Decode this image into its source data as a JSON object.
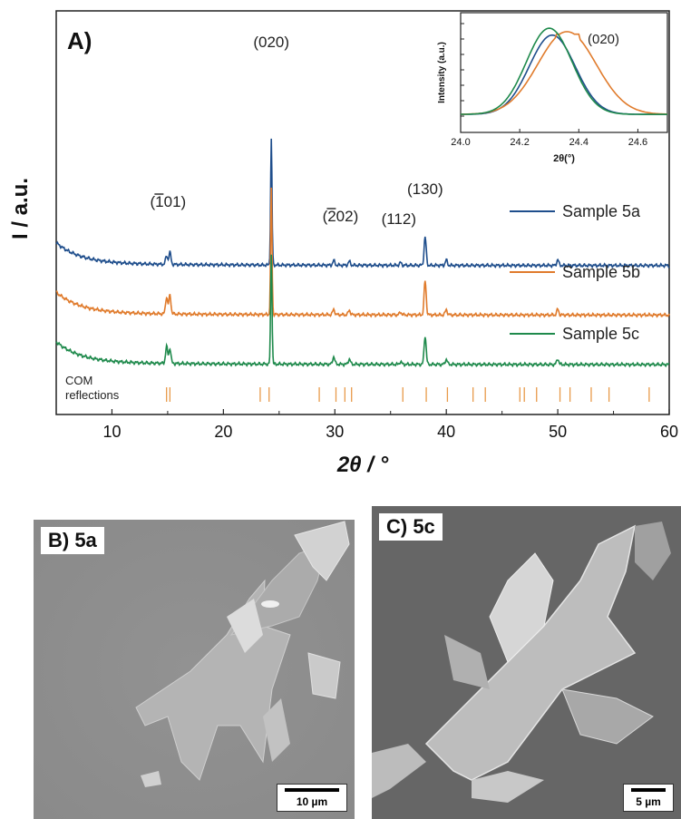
{
  "panel_a_label": "A)",
  "panel_b_label": "B) 5a",
  "panel_c_label": "C) 5c",
  "panel_b_scale": "10 µm",
  "panel_c_scale": "5 µm",
  "reflections_label_line1": "COM",
  "reflections_label_line2": "reflections",
  "chart_data": [
    {
      "type": "line",
      "xlabel": "2θ / °",
      "ylabel": "I / a.u.",
      "xlim": [
        5,
        60
      ],
      "xticks": [
        10,
        20,
        30,
        40,
        50,
        60
      ],
      "legend_placement": "right",
      "series": [
        {
          "name": "Sample 5a",
          "color": "#1f4e8c",
          "offset": 2.6,
          "peaks": [
            [
              14.9,
              0.22
            ],
            [
              15.2,
              0.32
            ],
            [
              24.3,
              3.3
            ],
            [
              29.9,
              0.12
            ],
            [
              31.3,
              0.1
            ],
            [
              35.9,
              0.07
            ],
            [
              38.1,
              0.75
            ],
            [
              40.0,
              0.14
            ],
            [
              50.0,
              0.15
            ]
          ]
        },
        {
          "name": "Sample 5b",
          "color": "#e07b2c",
          "offset": 1.3,
          "peaks": [
            [
              14.9,
              0.45
            ],
            [
              15.2,
              0.5
            ],
            [
              24.3,
              3.3
            ],
            [
              29.9,
              0.14
            ],
            [
              31.3,
              0.12
            ],
            [
              35.9,
              0.07
            ],
            [
              38.1,
              0.9
            ],
            [
              40.0,
              0.14
            ],
            [
              50.0,
              0.15
            ]
          ]
        },
        {
          "name": "Sample 5c",
          "color": "#1f8a4c",
          "offset": 0.0,
          "peaks": [
            [
              14.9,
              0.45
            ],
            [
              15.2,
              0.4
            ],
            [
              24.3,
              2.9
            ],
            [
              29.9,
              0.2
            ],
            [
              31.3,
              0.14
            ],
            [
              35.9,
              0.07
            ],
            [
              38.1,
              0.75
            ],
            [
              40.0,
              0.14
            ],
            [
              50.0,
              0.15
            ]
          ]
        }
      ],
      "annotations": [
        {
          "text": "(101)",
          "overbar_char": "1",
          "x": 15.2
        },
        {
          "text": "(020)",
          "x": 24.3
        },
        {
          "text": "(202)",
          "overbar_char": "2",
          "x": 30.5
        },
        {
          "text": "(112)",
          "x": 35.9
        },
        {
          "text": "(130)",
          "x": 38.1
        }
      ],
      "reference_reflections": [
        14.9,
        15.2,
        23.3,
        24.1,
        28.6,
        30.1,
        30.9,
        31.5,
        36.1,
        38.2,
        40.1,
        42.4,
        43.5,
        46.6,
        47.0,
        48.1,
        50.2,
        51.1,
        53.0,
        54.6,
        58.2
      ]
    },
    {
      "type": "line",
      "title": "",
      "xlabel": "2θ(°)",
      "ylabel": "Intensity (a.u.)",
      "xlim": [
        24.0,
        24.7
      ],
      "xticks": [
        24.0,
        24.2,
        24.4,
        24.6
      ],
      "annotation": "(020)",
      "series": [
        {
          "name": "Sample 5a",
          "color": "#1f4e8c",
          "peak_x": 24.31,
          "peak_y": 0.92
        },
        {
          "name": "Sample 5b",
          "color": "#e07b2c",
          "peak_x": 24.36,
          "peak_y": 0.96
        },
        {
          "name": "Sample 5c",
          "color": "#1f8a4c",
          "peak_x": 24.3,
          "peak_y": 1.0
        }
      ]
    }
  ]
}
